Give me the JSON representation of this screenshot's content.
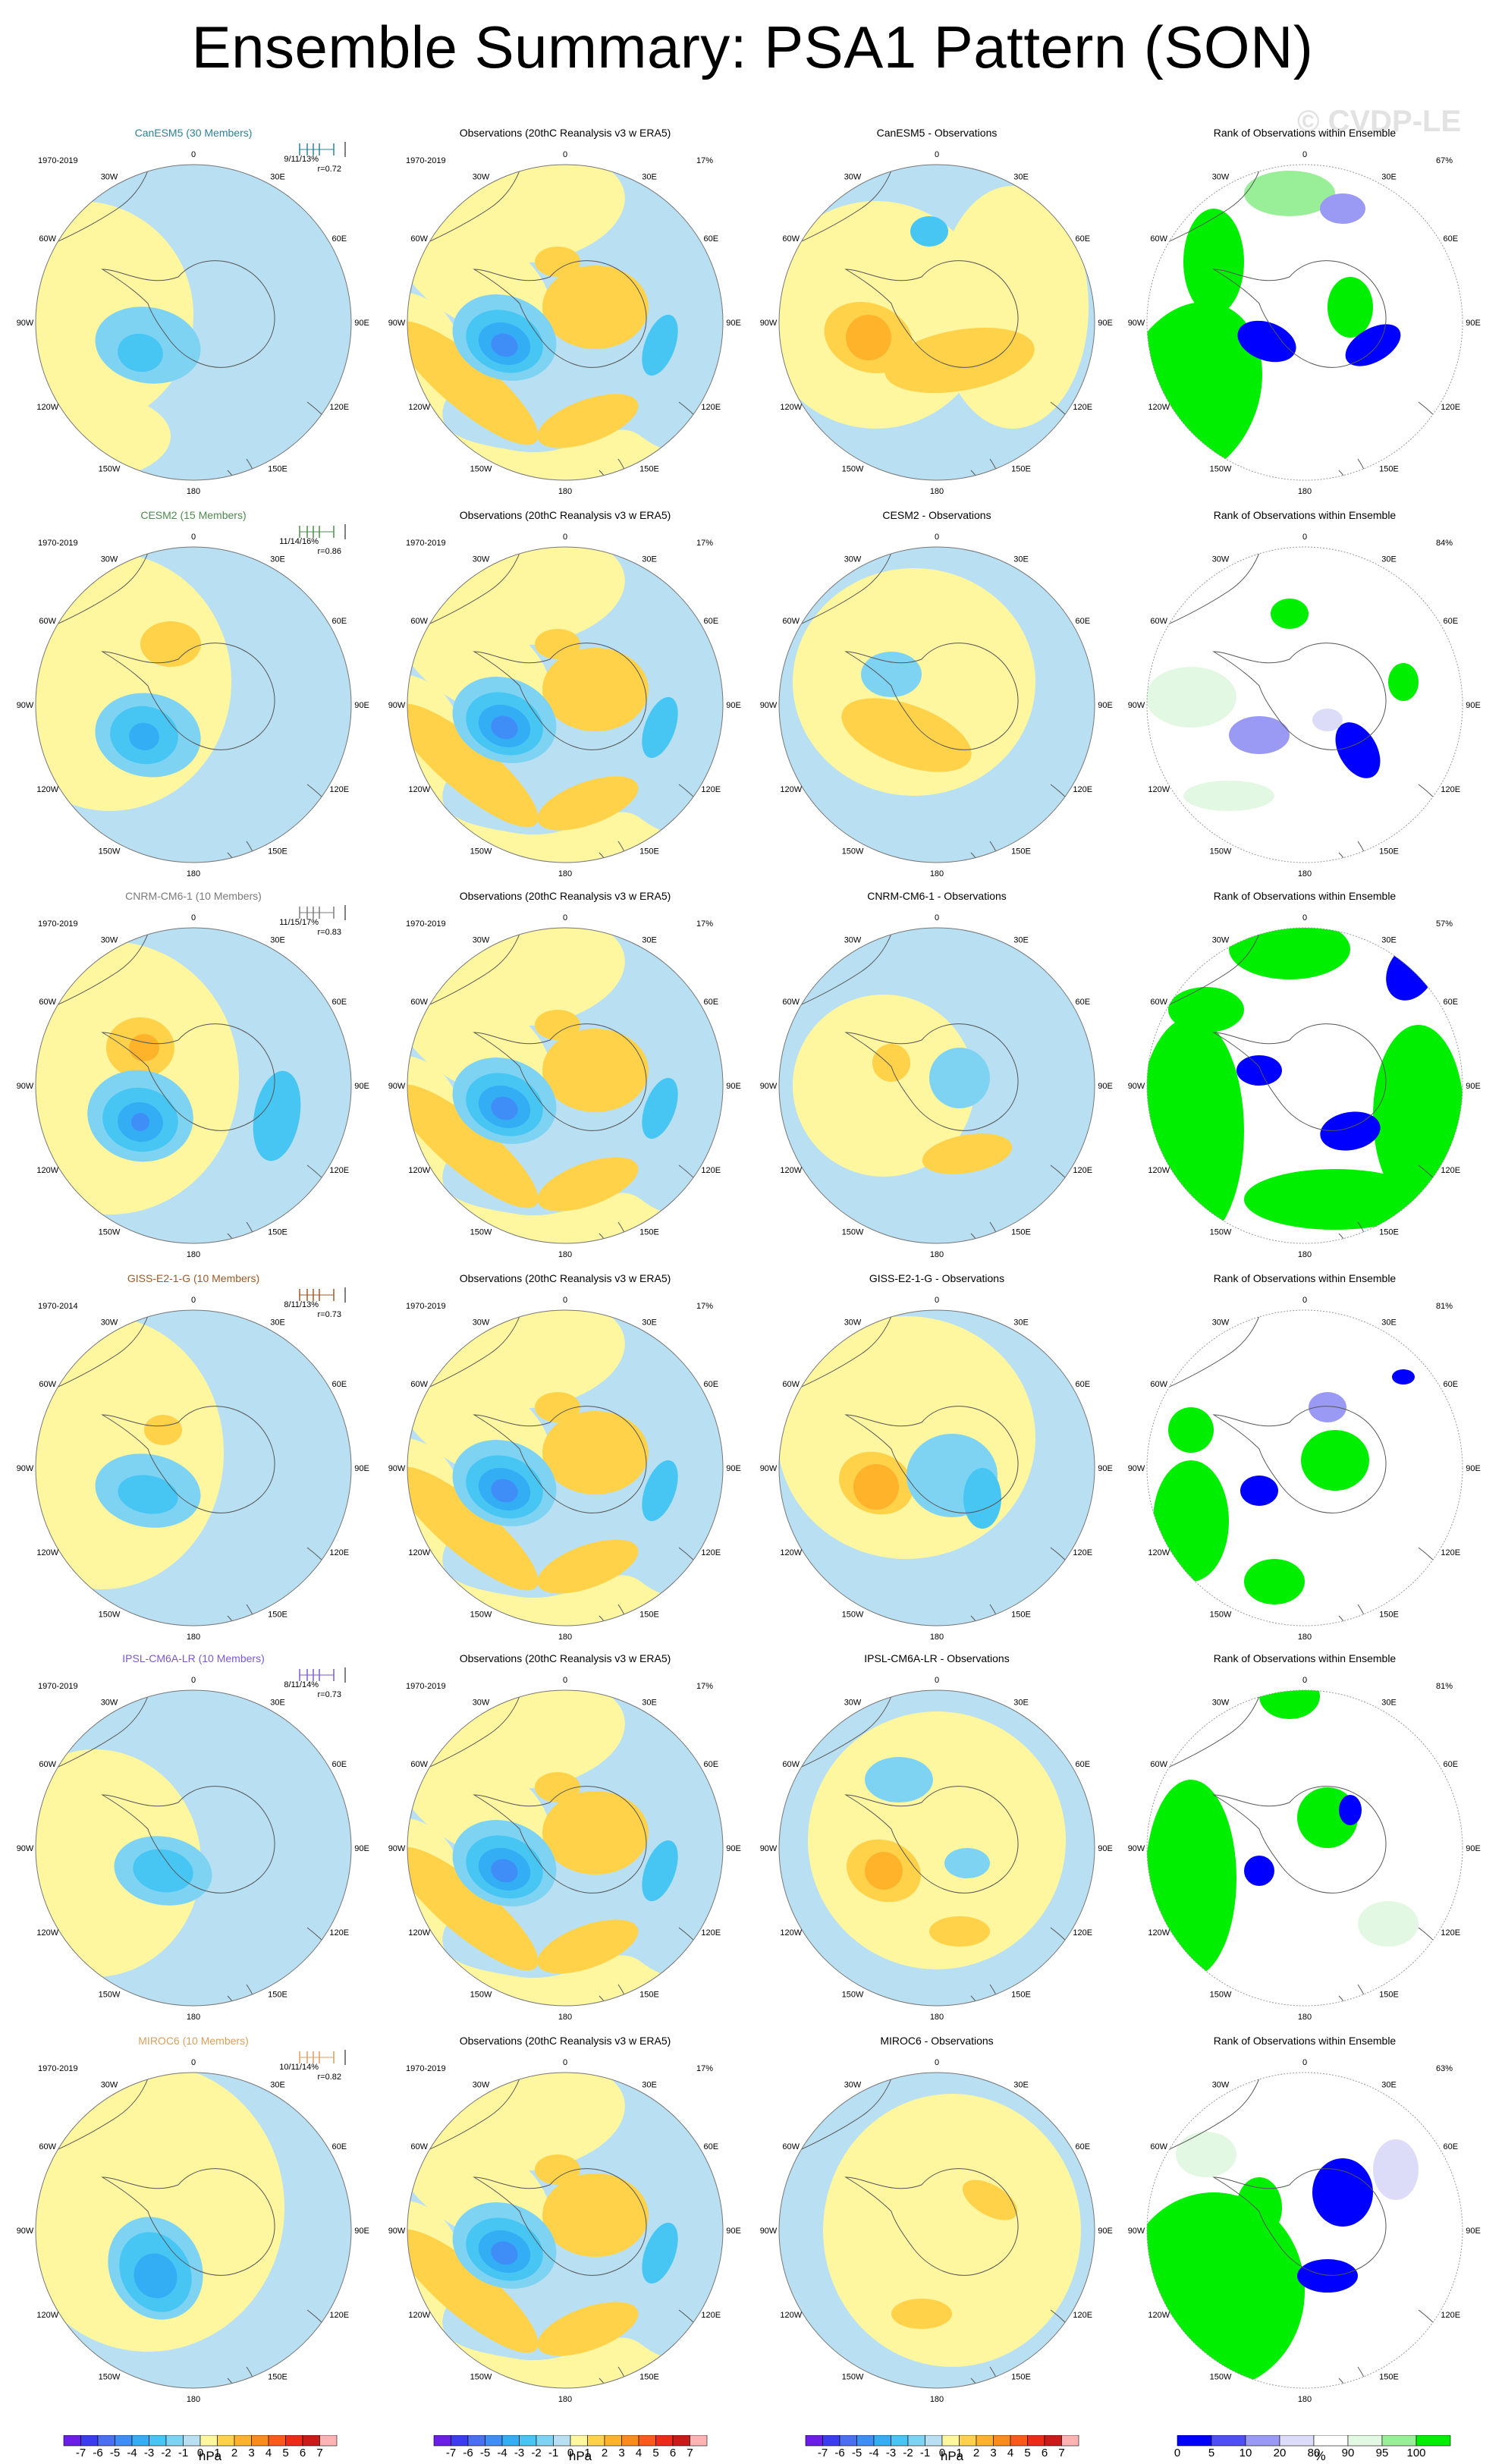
{
  "title": "Ensemble Summary: PSA1 Pattern (SON)",
  "watermark": "© CVDP-LE",
  "meridian_labels": [
    "0",
    "30E",
    "60E",
    "90E",
    "120E",
    "150E",
    "180",
    "150W",
    "120W",
    "90W",
    "60W",
    "30W"
  ],
  "column_titles": {
    "observations": "Observations (20thC Reanalysis v3 w ERA5)",
    "rank": "Rank of Observations within Ensemble"
  },
  "obs_percent": "17%",
  "rows": [
    {
      "model": "CanESM5 (30 Members)",
      "model_color": "#2e8099",
      "period": "1970-2019",
      "obs_period": "1970-2019",
      "stats": "9/11/13%",
      "r": "r=0.72",
      "diff_title": "CanESM5 - Observations",
      "rank_pct": "67%"
    },
    {
      "model": "CESM2 (15 Members)",
      "model_color": "#4e8a4e",
      "period": "1970-2019",
      "obs_period": "1970-2019",
      "stats": "11/14/16%",
      "r": "r=0.86",
      "diff_title": "CESM2 - Observations",
      "rank_pct": "84%"
    },
    {
      "model": "CNRM-CM6-1 (10 Members)",
      "model_color": "#7a7a7a",
      "period": "1970-2019",
      "obs_period": "1970-2019",
      "stats": "11/15/17%",
      "r": "r=0.83",
      "diff_title": "CNRM-CM6-1 - Observations",
      "rank_pct": "57%"
    },
    {
      "model": "GISS-E2-1-G (10 Members)",
      "model_color": "#9a5a2a",
      "period": "1970-2014",
      "obs_period": "1970-2019",
      "stats": "8/11/13%",
      "r": "r=0.73",
      "diff_title": "GISS-E2-1-G - Observations",
      "rank_pct": "81%"
    },
    {
      "model": "IPSL-CM6A-LR (10 Members)",
      "model_color": "#7a5acd",
      "period": "1970-2019",
      "obs_period": "1970-2019",
      "stats": "8/11/14%",
      "r": "r=0.73",
      "diff_title": "IPSL-CM6A-LR - Observations",
      "rank_pct": "81%"
    },
    {
      "model": "MIROC6 (10 Members)",
      "model_color": "#d9a060",
      "period": "1970-2019",
      "obs_period": "1970-2019",
      "stats": "10/11/14%",
      "r": "r=0.82",
      "diff_title": "MIROC6 - Observations",
      "rank_pct": "63%"
    }
  ],
  "colorbars": {
    "pressure": {
      "labels": [
        "-7",
        "-6",
        "-5",
        "-4",
        "-3",
        "-2",
        "-1",
        "0",
        "1",
        "2",
        "3",
        "4",
        "5",
        "6",
        "7"
      ],
      "colors": [
        "#6a1ee6",
        "#3c3cf2",
        "#4a6ff5",
        "#3f8ef8",
        "#33aef5",
        "#47c6f4",
        "#7fd3f2",
        "#b8e0f2",
        "#fff6a0",
        "#ffd24a",
        "#ffb32a",
        "#ff8c1a",
        "#ff5a1a",
        "#ee2a1a",
        "#cc1a1a",
        "#ffb3b3"
      ],
      "unit": "hPa"
    },
    "rank": {
      "labels": [
        "0",
        "5",
        "10",
        "20",
        "80",
        "90",
        "95",
        "100"
      ],
      "colors": [
        "#0000ff",
        "#4f4ff5",
        "#9a9af5",
        "#dcdcf8",
        "#ffffff",
        "#e3f8e3",
        "#98ef98",
        "#00ee00"
      ],
      "unit": "%"
    }
  },
  "chart_data": {
    "type": "heatmap",
    "title": "Ensemble Summary: PSA1 Pattern (SON)",
    "variable": "PSA1 pattern (SON)",
    "unit": "hPa",
    "contour_levels": [
      -7,
      -6,
      -5,
      -4,
      -3,
      -2,
      -1,
      0,
      1,
      2,
      3,
      4,
      5,
      6,
      7
    ],
    "rank_levels_percent": [
      0,
      5,
      10,
      20,
      80,
      90,
      95,
      100
    ]
  }
}
